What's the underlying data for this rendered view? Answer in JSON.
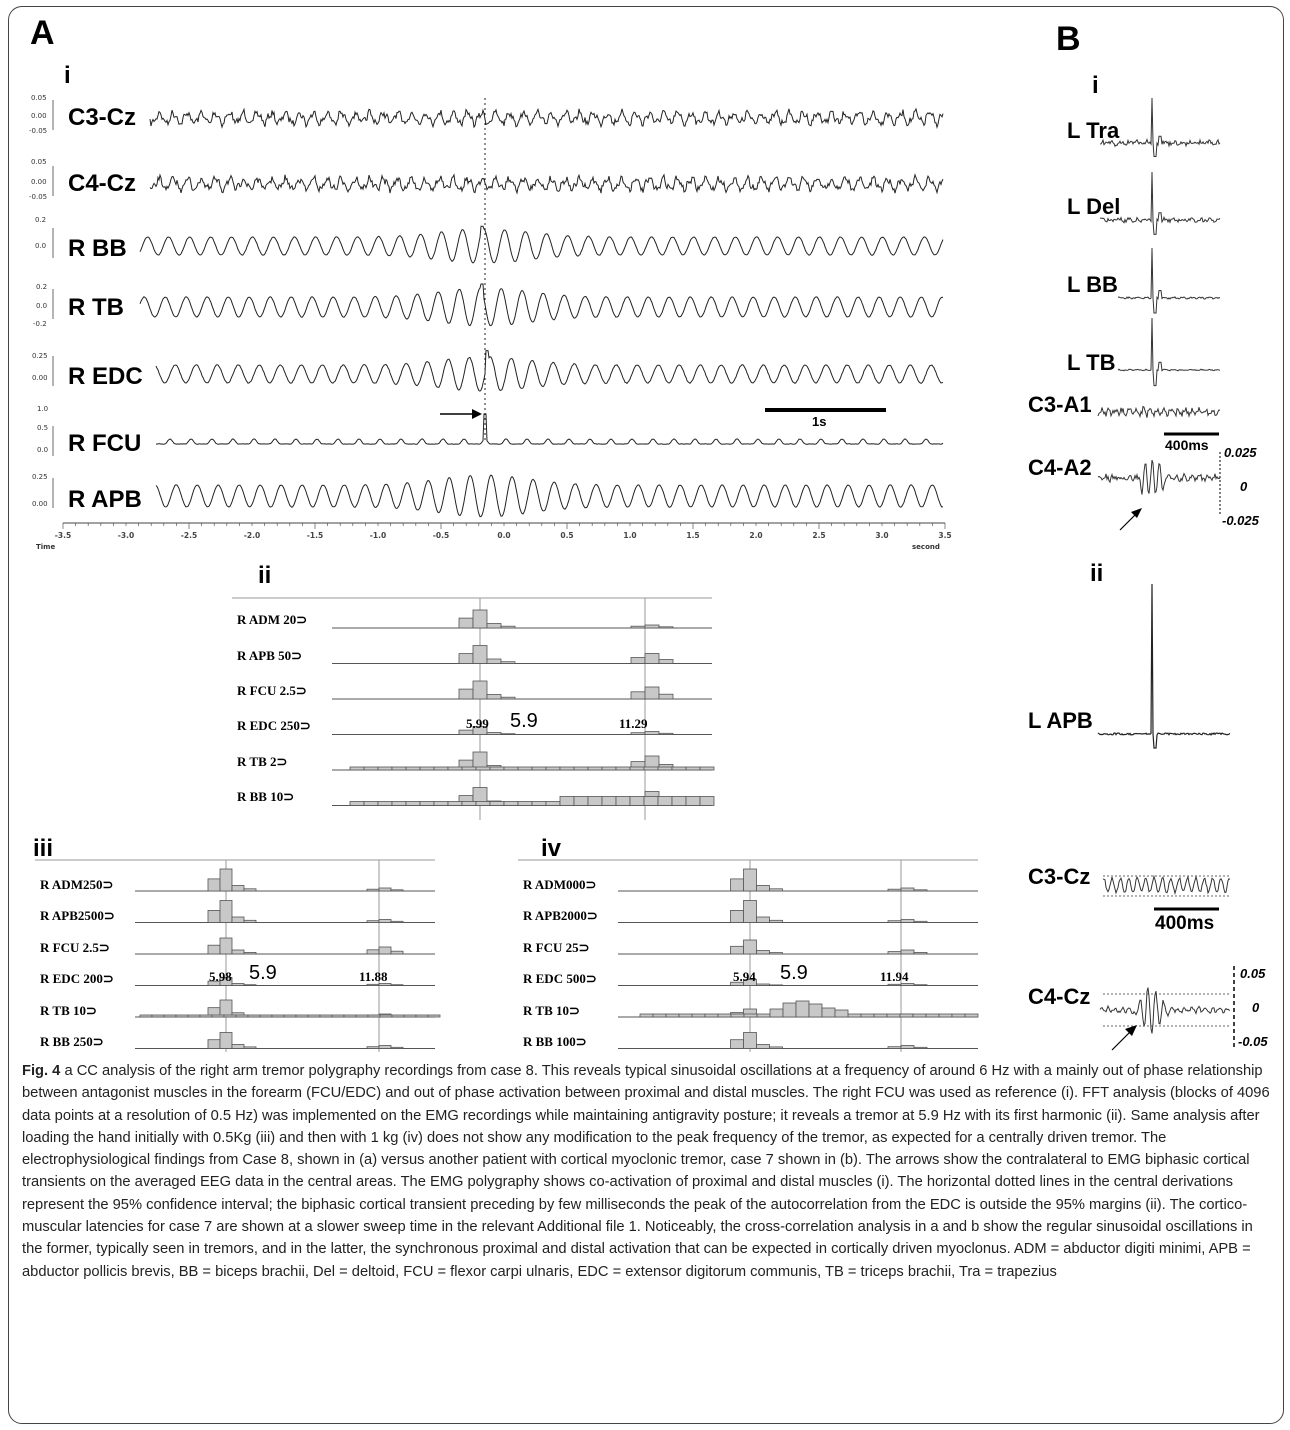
{
  "panelA": {
    "letter": "A",
    "sub_i": "i",
    "traces": [
      {
        "label": "C3-Cz",
        "scale": [
          "0.05",
          "0.00",
          "-0.05"
        ]
      },
      {
        "label": "C4-Cz",
        "scale": [
          "0.05",
          "0.00",
          "-0.05"
        ]
      },
      {
        "label": "R BB",
        "scale": [
          "0.2",
          "0.0"
        ]
      },
      {
        "label": "R TB",
        "scale": [
          "0.2",
          "0.0",
          "-0.2"
        ]
      },
      {
        "label": "R EDC",
        "scale": [
          "0.25",
          "0.00"
        ]
      },
      {
        "label": "R FCU",
        "scale": [
          "1.0",
          "0.5",
          "0.0"
        ]
      },
      {
        "label": "R APB",
        "scale": [
          "0.25",
          "0.00"
        ]
      }
    ],
    "x_ticks": [
      "-3.5",
      "-3.0",
      "-2.5",
      "-2.0",
      "-1.5",
      "-1.0",
      "-0.5",
      "0.0",
      "0.5",
      "1.0",
      "1.5",
      "2.0",
      "2.5",
      "3.0",
      "3.5"
    ],
    "x_left_label": "Time",
    "x_right_label": "second",
    "scalebar": "1s",
    "sub_ii": "ii",
    "sub_iii": "iii",
    "sub_iv": "iv",
    "fft_ii": {
      "rows": [
        "R ADM  20⊃",
        "R APB   50⊃",
        "R FCU  2.5⊃",
        "R EDC 250⊃",
        "R TB      2⊃",
        "R BB     10⊃"
      ],
      "peak1": "5.99",
      "big": "5.9",
      "peak2": "11.29"
    },
    "fft_iii": {
      "rows": [
        "R ADM250⊃",
        "R APB2500⊃",
        "R FCU  2.5⊃",
        "R EDC 200⊃",
        "R TB     10⊃",
        "R BB   250⊃"
      ],
      "peak1": "5.98",
      "big": "5.9",
      "peak2": "11.88"
    },
    "fft_iv": {
      "rows": [
        "R ADM000⊃",
        "R APB2000⊃",
        "R FCU  25⊃",
        "R EDC 500⊃",
        "R TB     10⊃",
        "R BB   100⊃"
      ],
      "peak1": "5.94",
      "big": "5.9",
      "peak2": "11.94"
    }
  },
  "panelB": {
    "letter": "B",
    "sub_i": "i",
    "sub_ii": "ii",
    "labels_i": [
      "L Tra",
      "L Del",
      "L BB",
      "L TB",
      "C3-A1",
      "C4-A2"
    ],
    "scalebar_i": "400ms",
    "vals_i": [
      "0.025",
      "0",
      "-0.025"
    ],
    "label_ii_apb": "L APB",
    "label_ii_c3": "C3-Cz",
    "label_ii_c4": "C4-Cz",
    "scalebar_ii": "400ms",
    "vals_ii": [
      "0.05",
      "0",
      "-0.05"
    ]
  },
  "caption": {
    "fig": "Fig. 4",
    "text": " a CC analysis of the right arm tremor polygraphy recordings from case 8. This reveals typical sinusoidal oscillations at a frequency of around 6 Hz with a mainly out of phase relationship between antagonist muscles in the forearm (FCU/EDC) and out of phase activation between proximal and distal muscles. The right FCU was used as reference (i). FFT analysis (blocks of 4096 data points at a resolution of 0.5 Hz) was implemented on the EMG recordings while maintaining antigravity posture; it reveals a tremor at 5.9 Hz with its first harmonic (ii). Same analysis after loading the hand initially with 0.5Kg (iii) and then with 1 kg (iv) does not show any modification to the peak frequency of the tremor, as expected for a centrally driven tremor. The electrophysiological findings from Case 8, shown in (a) versus another patient with cortical myoclonic tremor, case 7 shown in (b). The arrows show the contralateral to EMG biphasic cortical transients on the averaged EEG data in the central areas. The EMG polygraphy shows co-activation of proximal and distal muscles (i). The horizontal dotted lines in the central derivations represent the 95% confidence interval; the biphasic cortical transient preceding by few milliseconds the peak of the autocorrelation from the EDC is outside the 95% margins (ii). The cortico-muscular latencies for case 7 are shown at a slower sweep time in the relevant Additional file 1. Noticeably, the cross-correlation analysis in a and b show the regular sinusoidal oscillations in the former, typically seen in tremors, and in the latter, the synchronous proximal and distal activation that can be expected in cortically driven myoclonus. ADM = abductor digiti minimi, APB = abductor pollicis brevis, BB = biceps brachii, Del = deltoid, FCU = flexor carpi ulnaris, EDC = extensor digitorum communis, TB = triceps brachii, Tra = trapezius"
  }
}
